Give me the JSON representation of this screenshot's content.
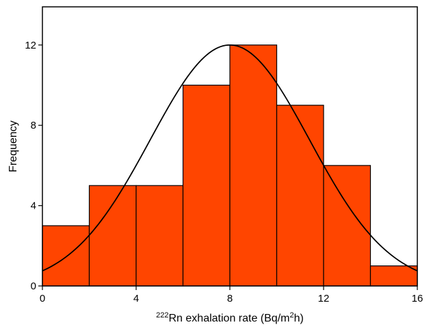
{
  "chart_data": {
    "type": "bar",
    "subtype": "histogram",
    "bin_edges": [
      0,
      2,
      4,
      6,
      8,
      10,
      12,
      14,
      16
    ],
    "bins": [
      {
        "x0": 0,
        "x1": 2,
        "value": 3
      },
      {
        "x0": 2,
        "x1": 4,
        "value": 5
      },
      {
        "x0": 4,
        "x1": 6,
        "value": 5
      },
      {
        "x0": 6,
        "x1": 8,
        "value": 10
      },
      {
        "x0": 8,
        "x1": 10,
        "value": 12
      },
      {
        "x0": 10,
        "x1": 12,
        "value": 9
      },
      {
        "x0": 12,
        "x1": 14,
        "value": 6
      },
      {
        "x0": 14,
        "x1": 16,
        "value": 1
      }
    ],
    "fit_curve": {
      "type": "normal",
      "mean": 8.0,
      "std": 3.4,
      "peak": 12.0
    },
    "xlim": [
      0,
      16
    ],
    "ylim": [
      0,
      13.9
    ],
    "xticks": [
      0,
      4,
      8,
      12,
      16
    ],
    "yticks": [
      0,
      4,
      8,
      12
    ],
    "xlabel": {
      "sup": "222",
      "main": "Rn exhalation rate (Bq/m",
      "sup2": "2",
      "tail": "h)"
    },
    "ylabel": "Frequency",
    "bar_color": "#FF4500",
    "edge_color": "#000000",
    "grid": false,
    "legend": "none"
  }
}
